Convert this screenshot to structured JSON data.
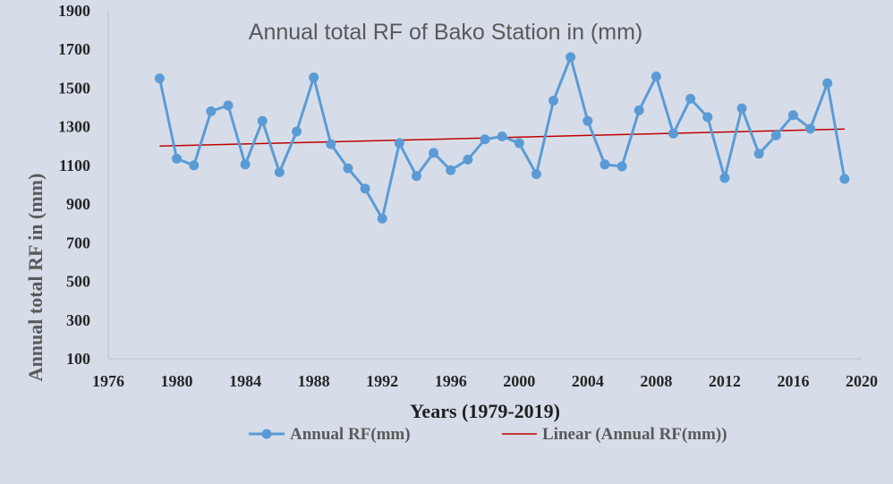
{
  "chart_data": {
    "type": "line",
    "title": "Annual total RF of Bako Station in (mm)",
    "xlabel": "Years (1979-2019)",
    "ylabel": "Annual total RF in (mm)",
    "xlim": [
      1976,
      2020
    ],
    "ylim": [
      100,
      1900
    ],
    "xticks": [
      1976,
      1980,
      1984,
      1988,
      1992,
      1996,
      2000,
      2004,
      2008,
      2012,
      2016,
      2020
    ],
    "yticks": [
      100,
      300,
      500,
      700,
      900,
      1100,
      1300,
      1500,
      1700,
      1900
    ],
    "grid": false,
    "legend_position": "bottom",
    "x": [
      1979,
      1980,
      1981,
      1982,
      1983,
      1984,
      1985,
      1986,
      1987,
      1988,
      1989,
      1990,
      1991,
      1992,
      1993,
      1994,
      1995,
      1996,
      1997,
      1998,
      1999,
      2000,
      2001,
      2002,
      2003,
      2004,
      2005,
      2006,
      2007,
      2008,
      2009,
      2010,
      2011,
      2012,
      2013,
      2014,
      2015,
      2016,
      2017,
      2018,
      2019
    ],
    "series": [
      {
        "name": "Annual RF(mm)",
        "color": "#5b9bd5",
        "values": [
          1550,
          1135,
          1100,
          1380,
          1410,
          1105,
          1330,
          1065,
          1275,
          1555,
          1210,
          1085,
          980,
          825,
          1215,
          1045,
          1165,
          1075,
          1130,
          1235,
          1250,
          1215,
          1055,
          1435,
          1660,
          1330,
          1105,
          1095,
          1385,
          1560,
          1265,
          1445,
          1350,
          1035,
          1395,
          1160,
          1255,
          1360,
          1290,
          1525,
          1030
        ]
      }
    ],
    "trendline": {
      "name": "Linear (Annual RF(mm))",
      "color": "#c00000",
      "start": [
        1979,
        1200
      ],
      "end": [
        2019,
        1288
      ]
    }
  }
}
